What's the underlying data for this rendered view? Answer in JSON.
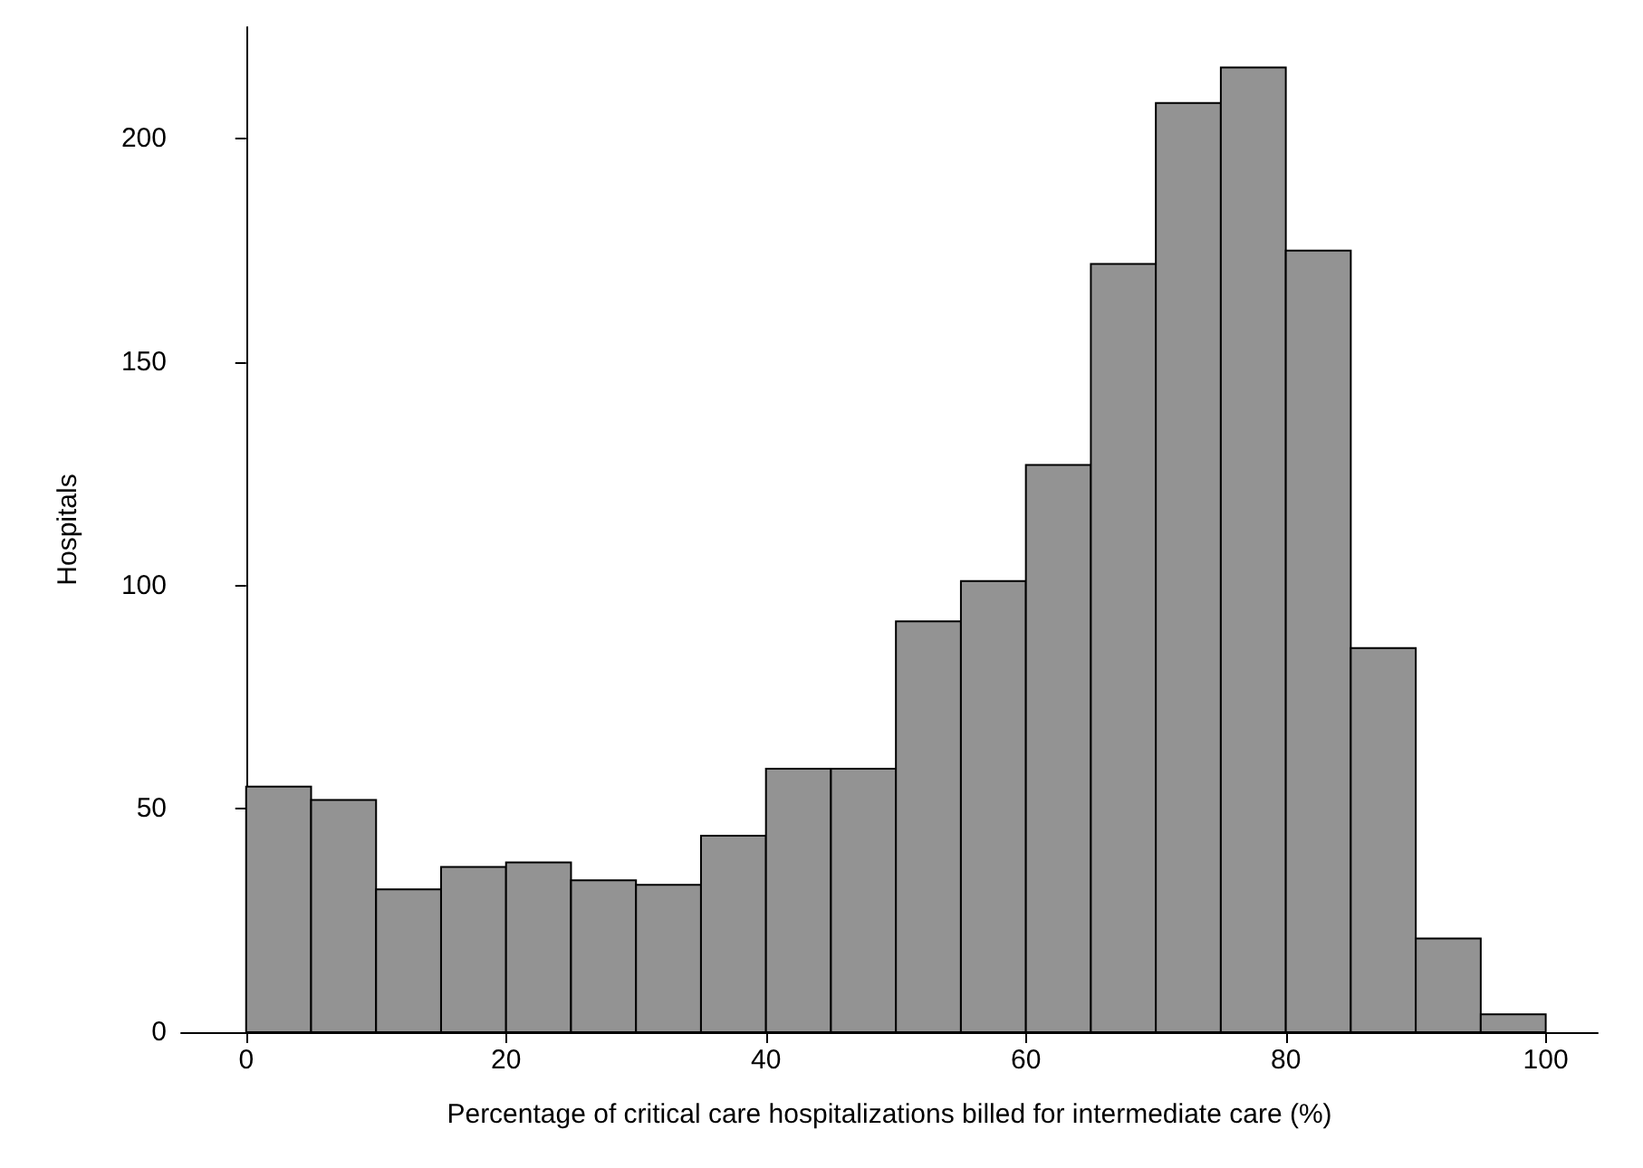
{
  "chart_data": {
    "type": "histogram",
    "xlabel": "Percentage of critical care hospitalizations billed for intermediate care (%)",
    "ylabel": "Hospitals",
    "bins": [
      0,
      5,
      10,
      15,
      20,
      25,
      30,
      35,
      40,
      45,
      50,
      55,
      60,
      65,
      70,
      75,
      80,
      85,
      90,
      95,
      100
    ],
    "values": [
      55,
      52,
      32,
      37,
      38,
      34,
      33,
      44,
      59,
      59,
      92,
      101,
      127,
      172,
      208,
      216,
      175,
      86,
      21,
      4
    ],
    "color": "#939393",
    "xlim": [
      -5,
      104
    ],
    "xticks": [
      0,
      20,
      40,
      60,
      80,
      100
    ],
    "ylim": [
      0,
      225
    ],
    "yticks": [
      0,
      50,
      100,
      150,
      200
    ]
  }
}
